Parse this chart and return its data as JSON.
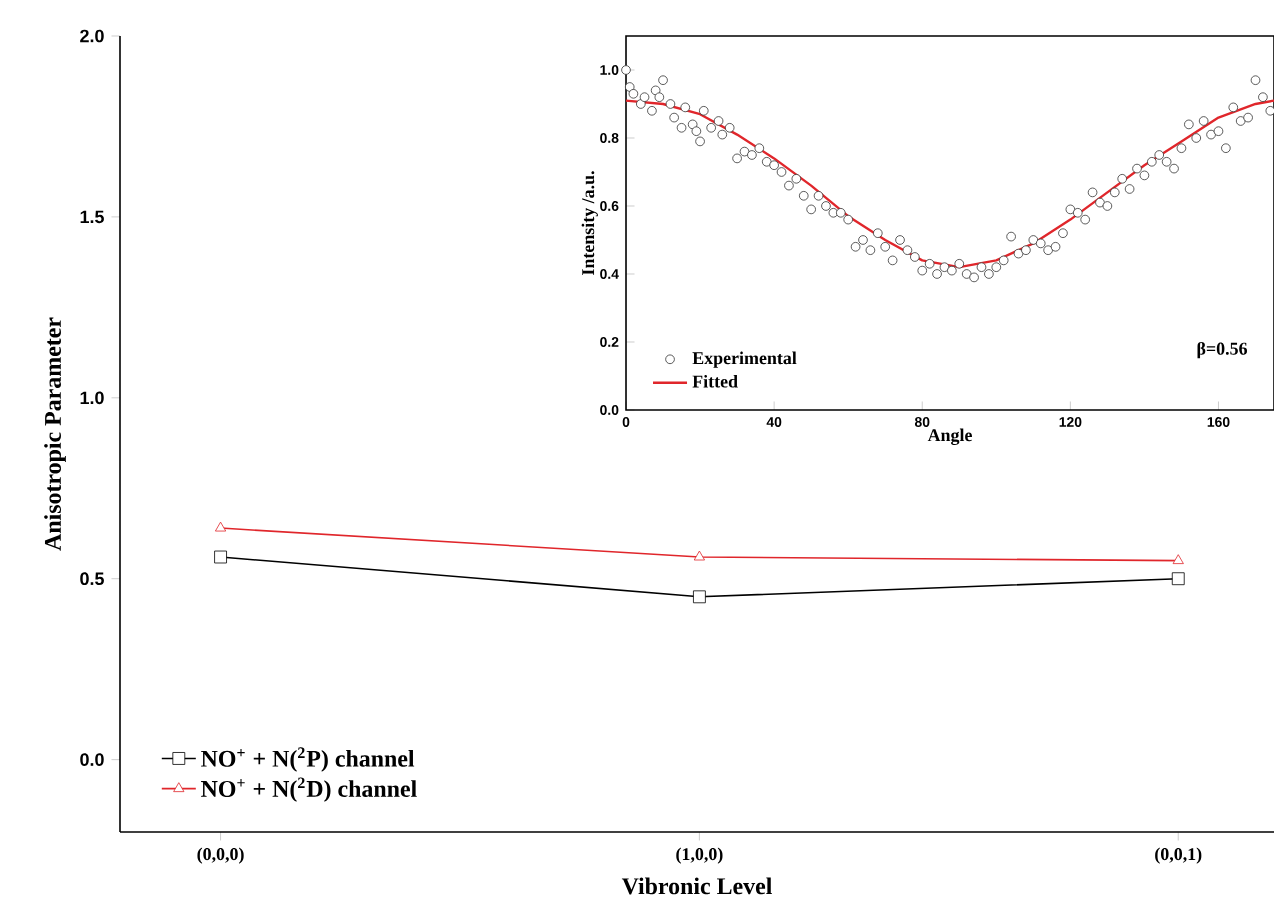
{
  "chart_data": [
    {
      "type": "line",
      "xlabel": "Vibronic Level",
      "ylabel": "Anisotropic Parameter",
      "categories": [
        "(0,0,0)",
        "(1,0,0)",
        "(0,0,1)"
      ],
      "series": [
        {
          "name": "NO$^{+}$ + N($^{2}$P) channel",
          "color": "#000000",
          "marker": "square",
          "values": [
            0.56,
            0.45,
            0.5
          ]
        },
        {
          "name": "NO$^{+}$ + N($^{2}$D) channel",
          "color": "#e0262b",
          "marker": "triangle",
          "values": [
            0.64,
            0.56,
            0.55
          ]
        }
      ],
      "ylim": [
        -0.2,
        2.0
      ],
      "yticks": [
        {
          "value": 0,
          "label": "0.0"
        },
        {
          "value": 0.5,
          "label": "0.5"
        },
        {
          "value": 1,
          "label": "1.0"
        },
        {
          "value": 1.5,
          "label": "1.5"
        },
        {
          "value": 2,
          "label": "2.0"
        }
      ],
      "legend": "bottom left"
    },
    {
      "type": "scatter",
      "xlabel": "Angle",
      "ylabel": "Intensity /a.u.",
      "annotations": [
        "β=0.56"
      ],
      "xlim": [
        0,
        175
      ],
      "xticks": [
        0,
        40,
        80,
        120,
        160
      ],
      "ylim": [
        0,
        1.1
      ],
      "yticks": [
        {
          "value": 0,
          "label": "0.0"
        },
        {
          "value": 0.2,
          "label": "0.2"
        },
        {
          "value": 0.4,
          "label": "0.4"
        },
        {
          "value": 0.6,
          "label": "0.6"
        },
        {
          "value": 0.8,
          "label": "0.8"
        },
        {
          "value": 1,
          "label": "1.0"
        }
      ],
      "legend": "bottom left",
      "series": [
        {
          "name": "Experimental",
          "type": "scatter",
          "color": "#333333",
          "marker": "circle",
          "x": [
            0,
            1,
            2,
            4,
            5,
            7,
            8,
            9,
            10,
            12,
            13,
            15,
            16,
            18,
            19,
            20,
            21,
            23,
            25,
            26,
            28,
            30,
            32,
            34,
            36,
            38,
            40,
            42,
            44,
            46,
            48,
            50,
            52,
            54,
            56,
            58,
            60,
            62,
            64,
            66,
            68,
            70,
            72,
            74,
            76,
            78,
            80,
            82,
            84,
            86,
            88,
            90,
            92,
            94,
            96,
            98,
            100,
            102,
            104,
            106,
            108,
            110,
            112,
            114,
            116,
            118,
            120,
            122,
            124,
            126,
            128,
            130,
            132,
            134,
            136,
            138,
            140,
            142,
            144,
            146,
            148,
            150,
            152,
            154,
            156,
            158,
            160,
            162,
            164,
            166,
            168,
            170,
            172,
            174
          ],
          "values": [
            1.0,
            0.95,
            0.93,
            0.9,
            0.92,
            0.88,
            0.94,
            0.92,
            0.97,
            0.9,
            0.86,
            0.83,
            0.89,
            0.84,
            0.82,
            0.79,
            0.88,
            0.83,
            0.85,
            0.81,
            0.83,
            0.74,
            0.76,
            0.75,
            0.77,
            0.73,
            0.72,
            0.7,
            0.66,
            0.68,
            0.63,
            0.59,
            0.63,
            0.6,
            0.58,
            0.58,
            0.56,
            0.48,
            0.5,
            0.47,
            0.52,
            0.48,
            0.44,
            0.5,
            0.47,
            0.45,
            0.41,
            0.43,
            0.4,
            0.42,
            0.41,
            0.43,
            0.4,
            0.39,
            0.42,
            0.4,
            0.42,
            0.44,
            0.51,
            0.46,
            0.47,
            0.5,
            0.49,
            0.47,
            0.48,
            0.52,
            0.59,
            0.58,
            0.56,
            0.64,
            0.61,
            0.6,
            0.64,
            0.68,
            0.65,
            0.71,
            0.69,
            0.73,
            0.75,
            0.73,
            0.71,
            0.77,
            0.84,
            0.8,
            0.85,
            0.81,
            0.82,
            0.77,
            0.89,
            0.85,
            0.86,
            0.97,
            0.92,
            0.88
          ]
        },
        {
          "name": "Fitted",
          "type": "line",
          "color": "#e0262b",
          "marker": "none",
          "x": [
            0,
            10,
            20,
            30,
            40,
            50,
            60,
            70,
            80,
            90,
            100,
            110,
            120,
            130,
            140,
            150,
            160,
            170,
            175
          ],
          "values": [
            0.91,
            0.9,
            0.87,
            0.81,
            0.74,
            0.66,
            0.57,
            0.5,
            0.44,
            0.42,
            0.44,
            0.49,
            0.56,
            0.64,
            0.72,
            0.79,
            0.86,
            0.9,
            0.91
          ]
        }
      ]
    }
  ]
}
